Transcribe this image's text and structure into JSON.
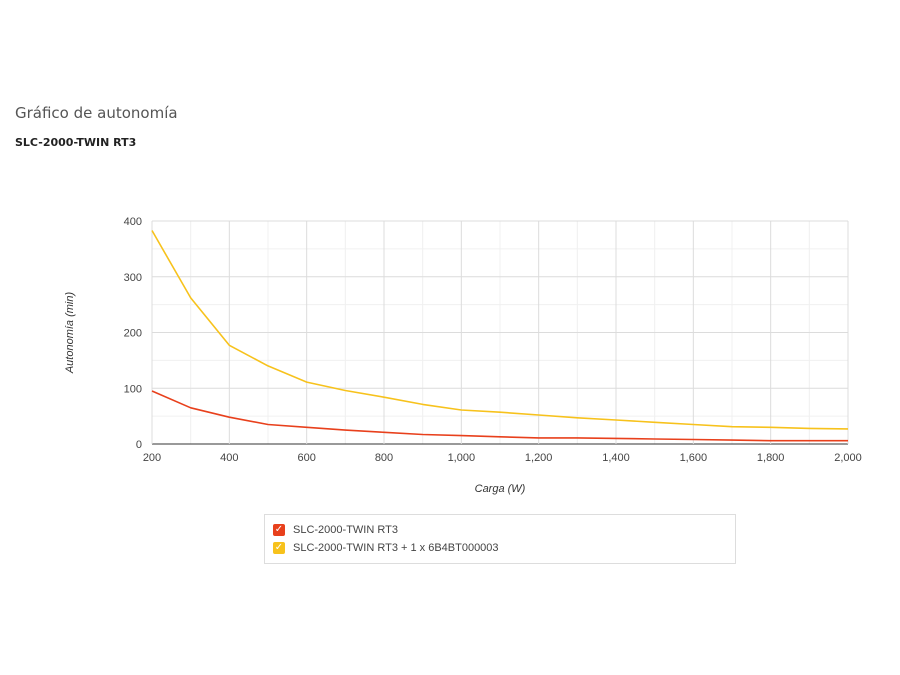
{
  "header": {
    "title": "Gráfico de autonomía",
    "subtitle": "SLC-2000-TWIN RT3"
  },
  "chart_data": {
    "type": "line",
    "xlabel": "Carga (W)",
    "ylabel": "Autonomía (min)",
    "xlim": [
      200,
      2000
    ],
    "ylim": [
      0,
      400
    ],
    "xticks": [
      200,
      400,
      600,
      800,
      1000,
      1200,
      1400,
      1600,
      1800,
      2000
    ],
    "xtick_labels": [
      "200",
      "400",
      "600",
      "800",
      "1,000",
      "1,200",
      "1,400",
      "1,600",
      "1,800",
      "2,000"
    ],
    "yticks": [
      0,
      100,
      200,
      300,
      400
    ],
    "ytick_labels": [
      "0",
      "100",
      "200",
      "300",
      "400"
    ],
    "grid": true,
    "legend_position": "bottom",
    "x": [
      200,
      300,
      400,
      500,
      600,
      700,
      800,
      900,
      1000,
      1100,
      1200,
      1300,
      1400,
      1500,
      1600,
      1700,
      1800,
      1900,
      2000
    ],
    "series": [
      {
        "name": "SLC-2000-TWIN RT3",
        "color": "#e8401c",
        "values": [
          95,
          65,
          48,
          35,
          30,
          25,
          21,
          17,
          15,
          13,
          11,
          11,
          10,
          9,
          8,
          7,
          6,
          6,
          6
        ]
      },
      {
        "name": "SLC-2000-TWIN RT3 + 1 x 6B4BT000003",
        "color": "#f7c21c",
        "values": [
          383,
          262,
          177,
          140,
          111,
          96,
          84,
          71,
          61,
          57,
          52,
          47,
          43,
          39,
          35,
          31,
          30,
          28,
          27
        ]
      }
    ]
  }
}
